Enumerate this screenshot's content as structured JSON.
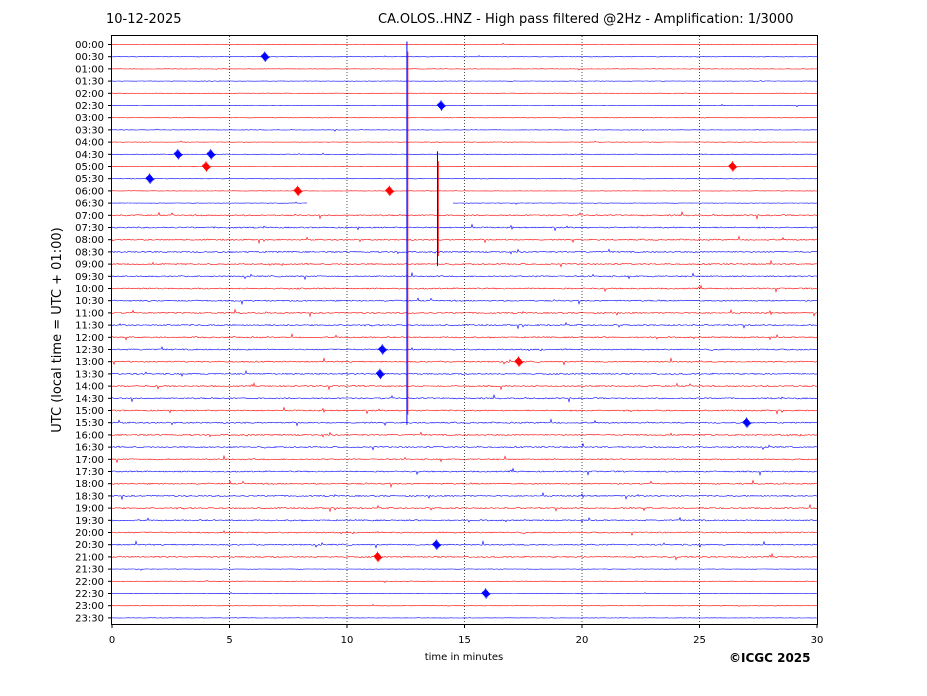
{
  "header": {
    "date": "10-12-2025",
    "title": "CA.OLOS..HNZ - High pass filtered @2Hz - Amplification: 1/3000"
  },
  "footer": {
    "copyright": "©ICGC 2025"
  },
  "colors": {
    "odd_trace": "#ff0000",
    "even_trace": "#0000ff",
    "grid": "#000000"
  },
  "chart_data": {
    "type": "line",
    "title": "CA.OLOS..HNZ - High pass filtered @2Hz - Amplification: 1/3000",
    "xlabel": "time in minutes",
    "ylabel": "UTC (local time = UTC + 01:00)",
    "xlim": [
      0,
      30
    ],
    "x_ticks": [
      "0",
      "5",
      "10",
      "15",
      "20",
      "25",
      "30"
    ],
    "vertical_gridlines_at": [
      5,
      10,
      15,
      20,
      25
    ],
    "grid": "dotted vertical",
    "row_labels": [
      "00:00",
      "00:30",
      "01:00",
      "01:30",
      "02:00",
      "02:30",
      "03:00",
      "03:30",
      "04:00",
      "04:30",
      "05:00",
      "05:30",
      "06:00",
      "06:30",
      "07:00",
      "07:30",
      "08:00",
      "08:30",
      "09:00",
      "09:30",
      "10:00",
      "10:30",
      "11:00",
      "11:30",
      "12:00",
      "12:30",
      "13:00",
      "13:30",
      "14:00",
      "14:30",
      "15:00",
      "15:30",
      "16:00",
      "16:30",
      "17:00",
      "17:30",
      "18:00",
      "18:30",
      "19:00",
      "19:30",
      "20:00",
      "20:30",
      "21:00",
      "21:30",
      "22:00",
      "22:30",
      "23:00",
      "23:30"
    ],
    "row_colors": "alternating red/blue starting with red at 00:00",
    "events": [
      {
        "row": "00:30",
        "minute": 6.5
      },
      {
        "row": "02:30",
        "minute": 14.0
      },
      {
        "row": "04:30",
        "minute": 2.8
      },
      {
        "row": "04:30",
        "minute": 4.2
      },
      {
        "row": "05:00",
        "minute": 4.0
      },
      {
        "row": "05:00",
        "minute": 26.4
      },
      {
        "row": "05:30",
        "minute": 1.6
      },
      {
        "row": "06:00",
        "minute": 7.9
      },
      {
        "row": "06:00",
        "minute": 11.8
      },
      {
        "row": "12:30",
        "minute": 11.5
      },
      {
        "row": "13:00",
        "minute": 17.3
      },
      {
        "row": "13:30",
        "minute": 11.4
      },
      {
        "row": "15:30",
        "minute": 27.0
      },
      {
        "row": "20:30",
        "minute": 13.8
      },
      {
        "row": "21:00",
        "minute": 11.3
      },
      {
        "row": "22:30",
        "minute": 15.9
      }
    ],
    "spikes": [
      {
        "row": "00:00",
        "minute": 12.55,
        "span_rows": 31
      },
      {
        "row": "04:30",
        "minute": 13.85,
        "span_rows": 9
      }
    ],
    "gap": {
      "row": "06:30",
      "from_minute": 8.3,
      "to_minute": 14.5
    }
  }
}
